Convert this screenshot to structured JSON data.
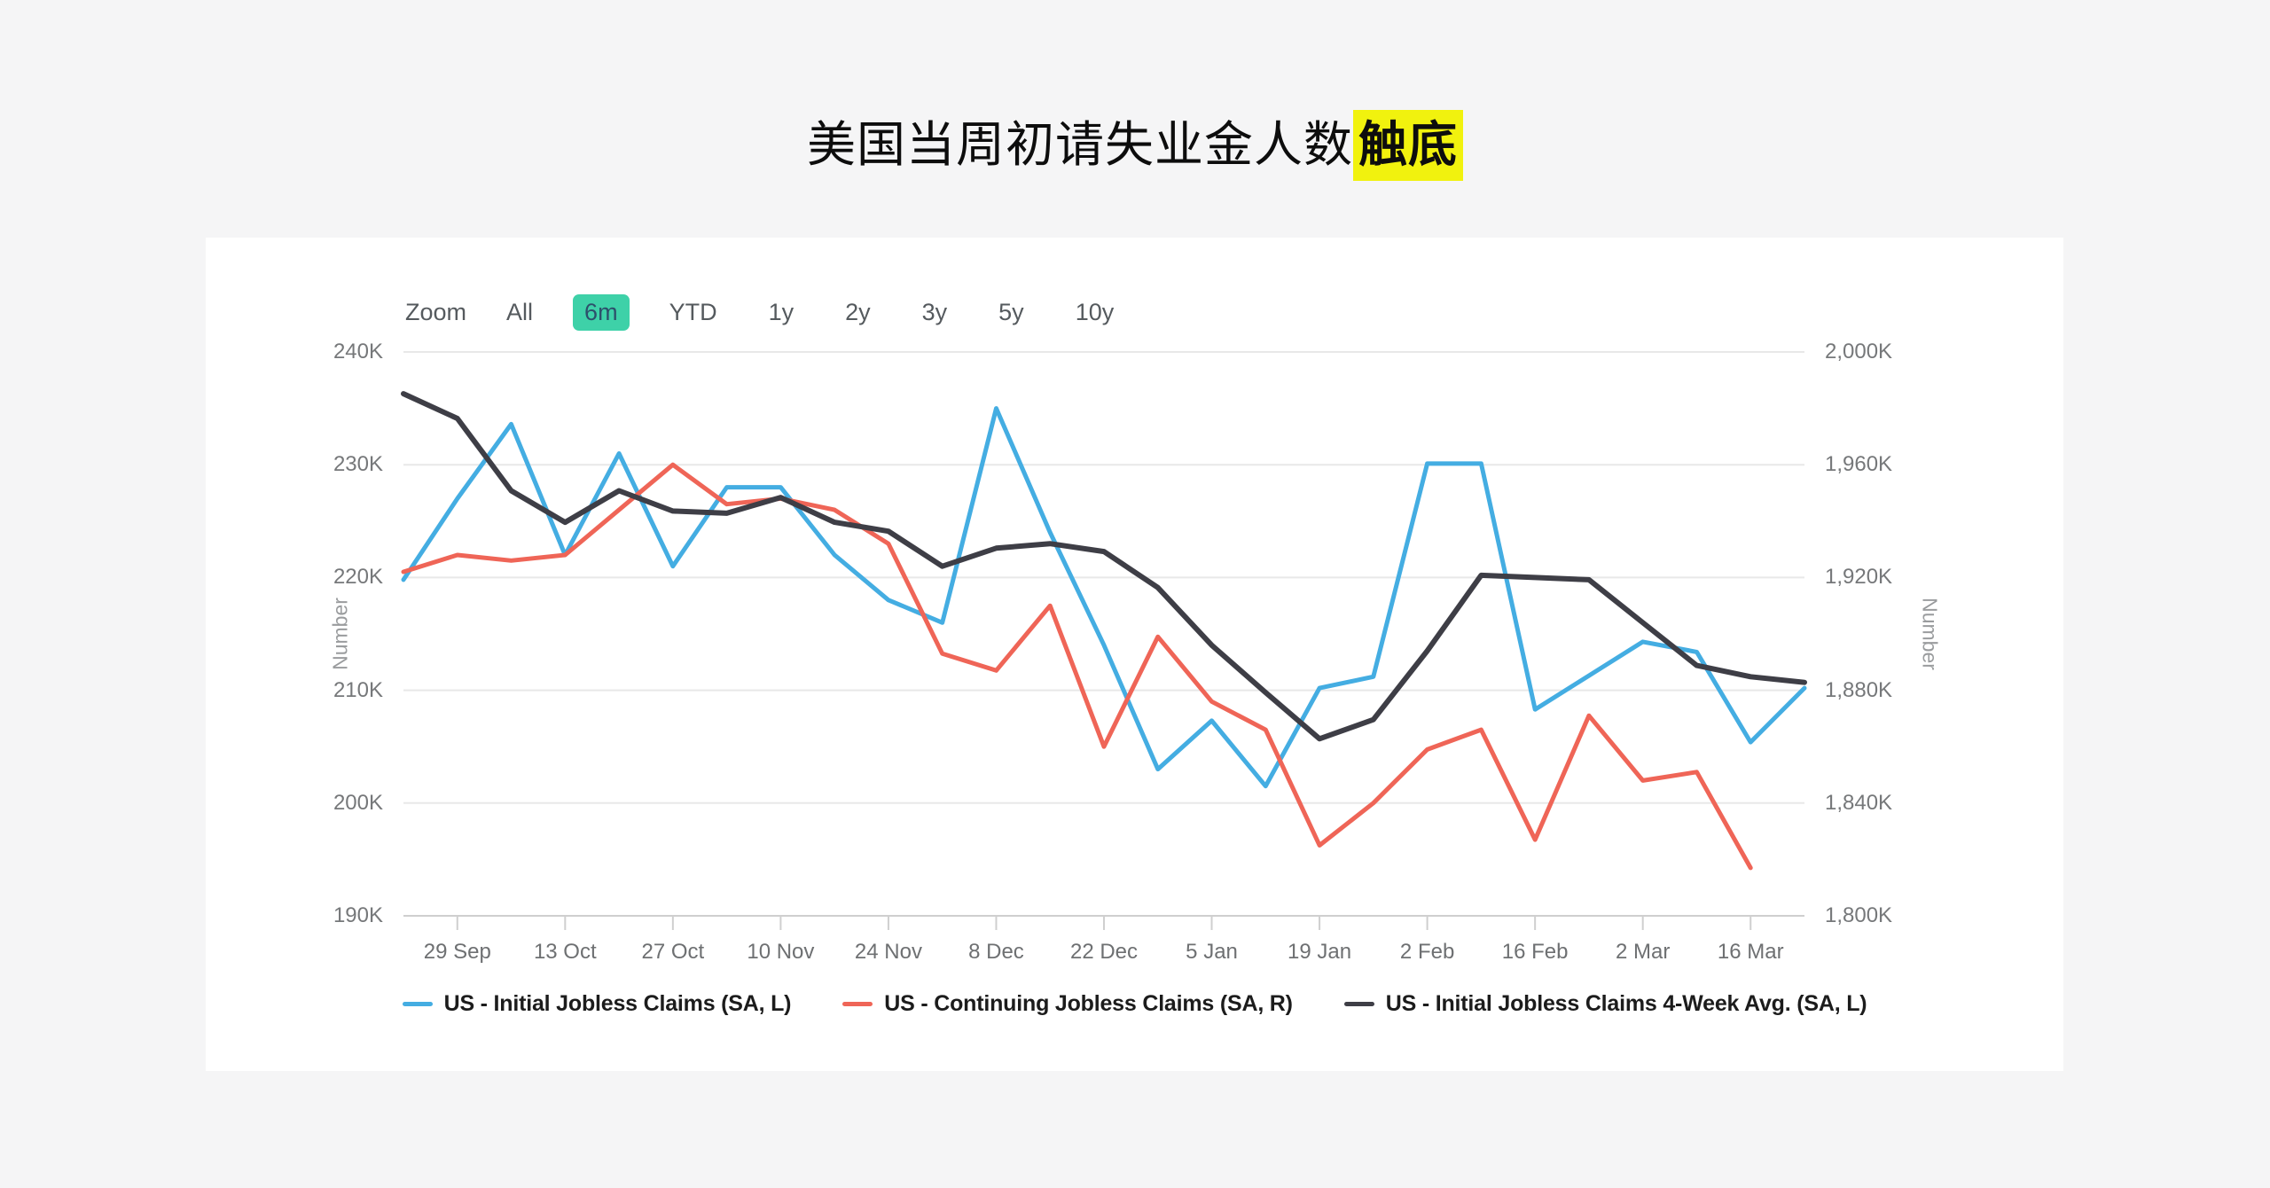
{
  "title": {
    "plain": "美国当周初请失业金人数",
    "highlight": "触底",
    "highlight_color": "#f1f20e"
  },
  "toolbar": {
    "zoom_label": "Zoom",
    "buttons": [
      "All",
      "6m",
      "YTD",
      "1y",
      "2y",
      "3y",
      "5y",
      "10y"
    ],
    "active": "6m",
    "active_bg": "#3ed1a8",
    "active_text": "#2d506b"
  },
  "chart_data": {
    "type": "line",
    "grid": "horizontal",
    "legend_position": "bottom",
    "x": [
      "22 Sep",
      "29 Sep",
      "6 Oct",
      "13 Oct",
      "20 Oct",
      "27 Oct",
      "3 Nov",
      "10 Nov",
      "17 Nov",
      "24 Nov",
      "1 Dec",
      "8 Dec",
      "15 Dec",
      "22 Dec",
      "29 Dec",
      "5 Jan",
      "12 Jan",
      "19 Jan",
      "26 Jan",
      "2 Feb",
      "9 Feb",
      "16 Feb",
      "23 Feb",
      "2 Mar",
      "9 Mar",
      "16 Mar",
      "23 Mar"
    ],
    "x_tick_labels": [
      "29 Sep",
      "13 Oct",
      "27 Oct",
      "10 Nov",
      "24 Nov",
      "8 Dec",
      "22 Dec",
      "5 Jan",
      "19 Jan",
      "2 Feb",
      "16 Feb",
      "2 Mar",
      "16 Mar"
    ],
    "left_axis": {
      "title": "Number",
      "min": 190,
      "max": 240,
      "unit": "K",
      "tick_labels": [
        "240K",
        "230K",
        "220K",
        "210K",
        "200K",
        "190K"
      ]
    },
    "right_axis": {
      "title": "Number",
      "min": 1800,
      "max": 2000,
      "unit": "K",
      "tick_labels": [
        "2,000K",
        "1,960K",
        "1,920K",
        "1,880K",
        "1,840K",
        "1,800K"
      ]
    },
    "series": [
      {
        "name": "US - Initial Jobless Claims (SA, L)",
        "axis": "left",
        "color": "#44ade2",
        "width": 5,
        "values": [
          219.8,
          227,
          233.6,
          222,
          231,
          221,
          228,
          228,
          222,
          218,
          216,
          235,
          224,
          214,
          203,
          207.3,
          201.5,
          210.2,
          211.2,
          230.1,
          230.1,
          208.3,
          211.3,
          214.3,
          213.4,
          205.4,
          210.2
        ]
      },
      {
        "name": "US - Continuing Jobless Claims (SA, R)",
        "axis": "right",
        "color": "#ef6557",
        "width": 5,
        "values": [
          1922,
          1928,
          1926,
          1928,
          1944,
          1960,
          1946,
          1948,
          1944,
          1932,
          1893,
          1887,
          1910,
          1860,
          1899,
          1876,
          1866,
          1825,
          1840,
          1859,
          1866,
          1827,
          1871,
          1848,
          1851,
          1817
        ]
      },
      {
        "name": "US - Initial Jobless Claims 4-Week Avg. (SA, L)",
        "axis": "left",
        "color": "#3e3e46",
        "width": 6,
        "values": [
          236.3,
          234.1,
          227.7,
          224.9,
          227.7,
          225.9,
          225.7,
          227.1,
          224.9,
          224.1,
          221,
          222.6,
          223,
          222.3,
          219.1,
          214,
          209.8,
          205.7,
          207.4,
          213.5,
          220.2,
          220,
          219.8,
          216,
          212.2,
          211.2,
          210.7
        ]
      }
    ]
  }
}
